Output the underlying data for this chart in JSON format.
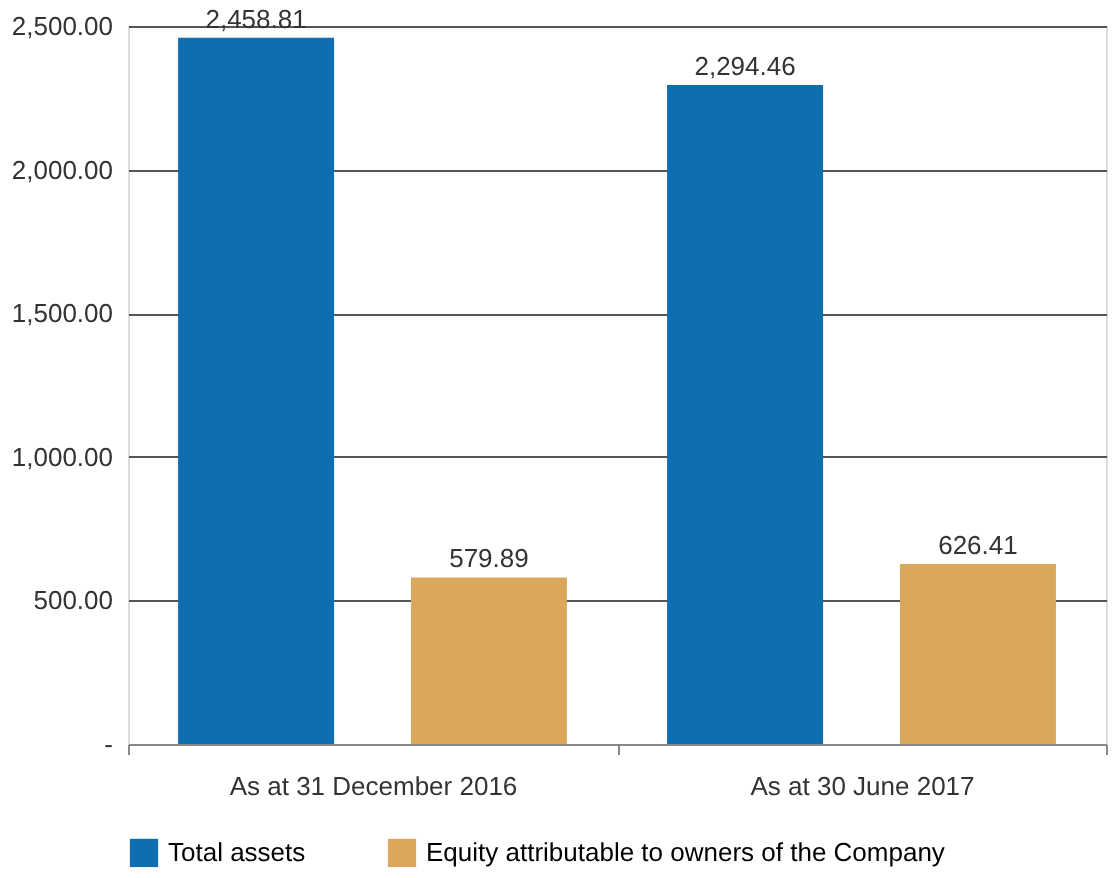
{
  "chart_data": {
    "type": "bar",
    "categories": [
      "As at 31 December 2016",
      "As at 30 June 2017"
    ],
    "series": [
      {
        "name": "Total assets",
        "color": "#0f6eb0",
        "values": [
          2458.81,
          2294.46
        ],
        "value_labels": [
          "2,458.81",
          "2,294.46"
        ]
      },
      {
        "name": "Equity attributable to owners of the Company",
        "color": "#d9a85c",
        "values": [
          579.89,
          626.41
        ],
        "value_labels": [
          "579.89",
          "626.41"
        ]
      }
    ],
    "ylim": [
      0,
      2500
    ],
    "yticks": [
      {
        "value": 0,
        "label": "-"
      },
      {
        "value": 500,
        "label": "500.00"
      },
      {
        "value": 1000,
        "label": "1,000.00"
      },
      {
        "value": 1500,
        "label": "1,500.00"
      },
      {
        "value": 2000,
        "label": "2,000.00"
      },
      {
        "value": 2500,
        "label": "2,500.00"
      }
    ],
    "grid": "y",
    "legend": "bottom"
  }
}
